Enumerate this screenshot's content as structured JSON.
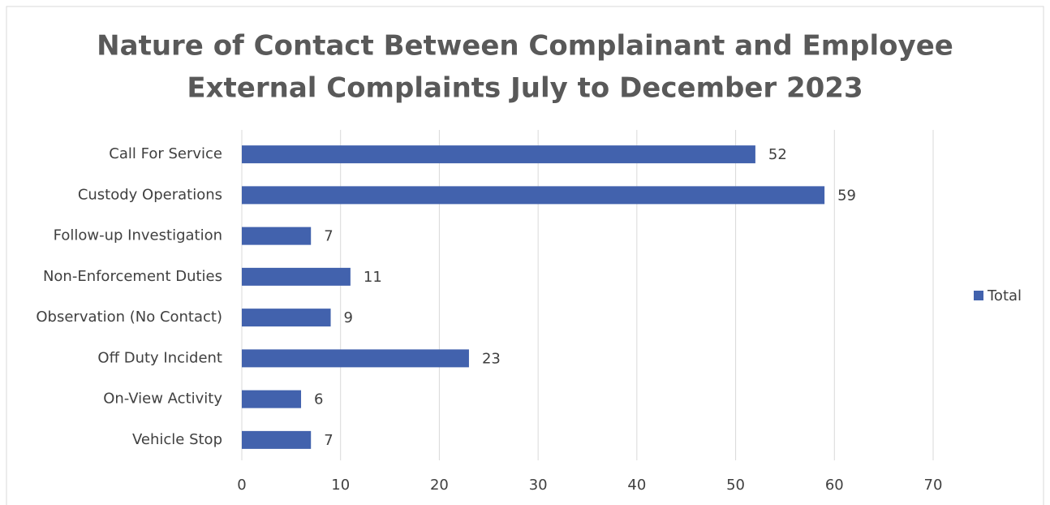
{
  "chart_data": {
    "type": "bar",
    "orientation": "horizontal",
    "title": [
      "Nature of Contact Between Complainant and Employee",
      "External Complaints July to December 2023"
    ],
    "categories": [
      "Call For Service",
      "Custody Operations",
      "Follow-up Investigation",
      "Non-Enforcement Duties",
      "Observation (No Contact)",
      "Off Duty Incident",
      "On-View Activity",
      "Vehicle Stop"
    ],
    "series": [
      {
        "name": "Total",
        "color": "#4262ad",
        "values": [
          52,
          59,
          7,
          11,
          9,
          23,
          6,
          7
        ]
      }
    ],
    "xlim": [
      0,
      70
    ],
    "xticks": [
      0,
      10,
      20,
      30,
      40,
      50,
      60,
      70
    ],
    "grid": true,
    "legend": "right"
  }
}
